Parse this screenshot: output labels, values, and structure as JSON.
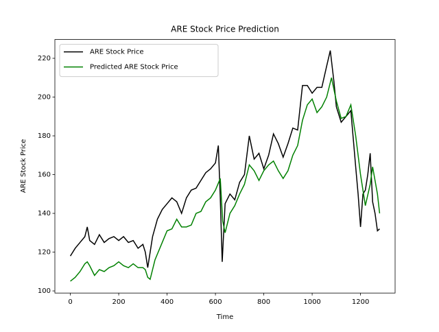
{
  "chart_data": {
    "type": "line",
    "title": "ARE Stock Price Prediction",
    "x_label": "Time",
    "y_label": "ARE Stock Price",
    "xlim": [
      -64,
      1343
    ],
    "ylim": [
      98.9,
      229.7
    ],
    "xticks": [
      0,
      200,
      400,
      600,
      800,
      1000,
      1200
    ],
    "yticks": [
      100,
      120,
      140,
      160,
      180,
      200,
      220
    ],
    "legend": "upper left",
    "series": [
      {
        "name": "ARE Stock Price",
        "color": "#000000",
        "x": [
          0,
          20,
          40,
          60,
          70,
          80,
          100,
          120,
          140,
          160,
          180,
          200,
          220,
          240,
          260,
          280,
          300,
          310,
          320,
          340,
          360,
          380,
          400,
          420,
          440,
          460,
          480,
          500,
          520,
          540,
          560,
          580,
          600,
          612,
          620,
          628,
          640,
          660,
          680,
          700,
          720,
          740,
          760,
          780,
          800,
          820,
          840,
          860,
          880,
          900,
          920,
          940,
          960,
          980,
          1000,
          1020,
          1040,
          1060,
          1075,
          1090,
          1100,
          1120,
          1140,
          1160,
          1180,
          1190,
          1200,
          1210,
          1220,
          1230,
          1240,
          1250,
          1260,
          1270,
          1279
        ],
        "values": [
          118,
          122,
          125,
          128,
          133,
          126,
          124,
          129,
          125,
          127,
          128,
          126,
          128,
          125,
          126,
          122,
          124,
          120,
          112,
          128,
          137,
          142,
          145,
          148,
          146,
          140,
          148,
          152,
          153,
          157,
          161,
          163,
          166,
          175,
          148,
          115,
          145,
          150,
          147,
          156,
          160,
          180,
          168,
          171,
          163,
          170,
          181,
          176,
          169,
          176,
          184,
          183,
          206,
          206,
          202,
          205,
          205,
          216,
          224,
          208,
          195,
          187,
          190,
          193,
          164,
          150,
          133,
          150,
          152,
          160,
          171,
          146,
          140,
          131,
          132
        ]
      },
      {
        "name": "Predicted ARE Stock Price",
        "color": "#008000",
        "x": [
          0,
          20,
          40,
          60,
          70,
          80,
          100,
          120,
          140,
          160,
          180,
          200,
          220,
          240,
          260,
          280,
          300,
          310,
          320,
          330,
          350,
          380,
          400,
          420,
          440,
          460,
          480,
          500,
          520,
          540,
          560,
          580,
          600,
          620,
          630,
          640,
          660,
          680,
          700,
          720,
          740,
          760,
          780,
          800,
          820,
          840,
          860,
          880,
          900,
          920,
          940,
          960,
          980,
          1000,
          1020,
          1040,
          1060,
          1080,
          1100,
          1120,
          1140,
          1160,
          1180,
          1200,
          1220,
          1240,
          1250,
          1270,
          1279
        ],
        "values": [
          105,
          107,
          110,
          114,
          115,
          113,
          108,
          111,
          110,
          112,
          113,
          115,
          113,
          112,
          114,
          112,
          112,
          111,
          107,
          106,
          116,
          125,
          131,
          132,
          137,
          133,
          133,
          134,
          140,
          141,
          146,
          148,
          152,
          158,
          136,
          130,
          140,
          144,
          150,
          155,
          165,
          162,
          157,
          162,
          165,
          167,
          162,
          158,
          162,
          170,
          175,
          188,
          196,
          199,
          192,
          195,
          200,
          210,
          198,
          189,
          190,
          196,
          180,
          160,
          144,
          155,
          164,
          150,
          140
        ]
      }
    ]
  }
}
